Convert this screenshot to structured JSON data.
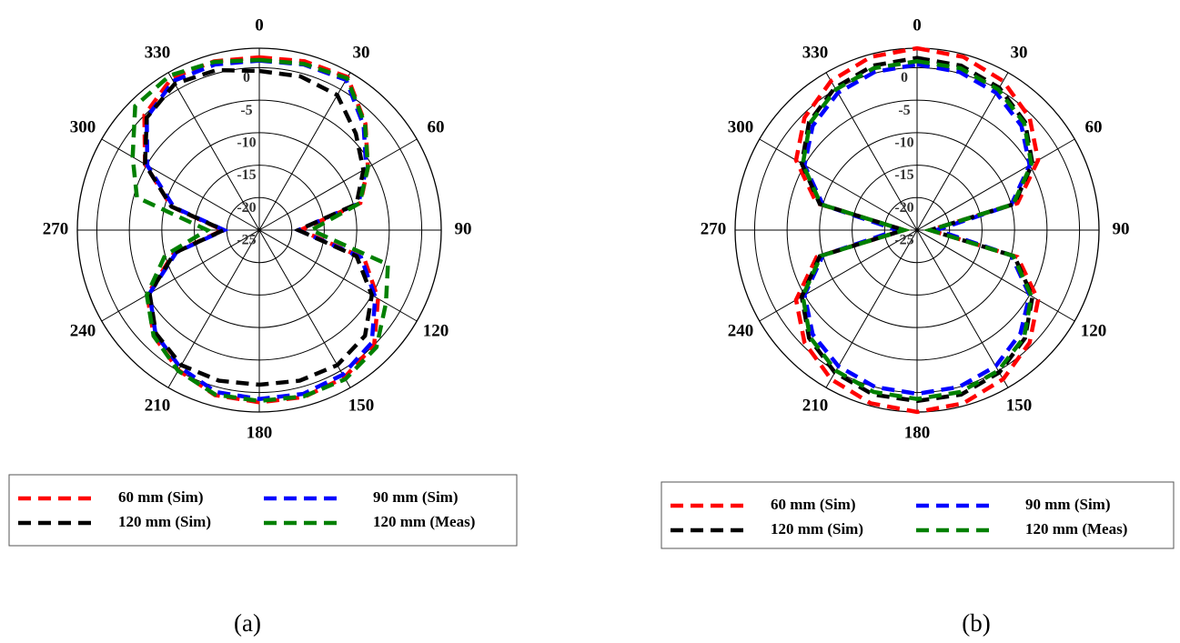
{
  "chart_data": [
    {
      "type": "polar",
      "caption": "(a)",
      "theta_zero": "top",
      "theta_direction": "clockwise",
      "theta": [
        0,
        15,
        30,
        45,
        60,
        75,
        90,
        105,
        120,
        135,
        150,
        165,
        180,
        195,
        210,
        225,
        240,
        255,
        270,
        285,
        300,
        315,
        330,
        345
      ],
      "thetaticks": [
        0,
        30,
        60,
        90,
        120,
        150,
        180,
        210,
        240,
        270,
        300,
        330
      ],
      "rlim": [
        -25,
        3
      ],
      "rticks": [
        -25,
        -20,
        -15,
        -10,
        -5,
        0
      ],
      "series": [
        {
          "name": "60 mm (Sim)",
          "color": "#ff0000",
          "values": [
            1.6,
            1.9,
            2.2,
            -1.9,
            -5.7,
            -8.9,
            -18.7,
            -8.3,
            -3.9,
            0,
            1.2,
            1.6,
            1.5,
            1.3,
            -0.1,
            -2,
            -5.1,
            -11.4,
            -19.4,
            -11,
            -4.7,
            0,
            2,
            1.9
          ]
        },
        {
          "name": "90 mm (Sim)",
          "color": "#0000ff",
          "values": [
            1.1,
            1.4,
            1.7,
            -2.3,
            -6,
            -9.2,
            -19,
            -8.8,
            -4.4,
            -0.5,
            0.7,
            1.1,
            1,
            0.8,
            -0.6,
            -2.4,
            -5.5,
            -11.8,
            -19.6,
            -11.4,
            -5.1,
            -0.5,
            1.5,
            1.4
          ]
        },
        {
          "name": "120 mm (Sim)",
          "color": "#000000",
          "values": [
            -0.5,
            -0.5,
            -1,
            -4,
            -6.5,
            -9.5,
            -19,
            -9.5,
            -5,
            -2,
            -1,
            -1,
            -1.2,
            -1,
            -1,
            -2.5,
            -5.5,
            -11.5,
            -19.5,
            -11,
            -4.7,
            -0.5,
            1,
            0.5
          ]
        },
        {
          "name": "120 mm (Meas)",
          "color": "#008000",
          "values": [
            1.2,
            1.5,
            2,
            -2,
            -5.7,
            -9,
            -17,
            -4.5,
            -2.5,
            0.5,
            1.5,
            1.5,
            1.3,
            1.2,
            0,
            -2,
            -5,
            -10,
            -17,
            -5.5,
            -2.5,
            2,
            2.5,
            1.8
          ]
        }
      ]
    },
    {
      "type": "polar",
      "caption": "(b)",
      "theta_zero": "top",
      "theta_direction": "clockwise",
      "theta": [
        0,
        15,
        30,
        45,
        60,
        75,
        90,
        105,
        120,
        135,
        150,
        165,
        180,
        195,
        210,
        225,
        240,
        255,
        270,
        285,
        300,
        315,
        330,
        345
      ],
      "thetaticks": [
        0,
        30,
        60,
        90,
        120,
        150,
        180,
        210,
        240,
        270,
        300,
        330
      ],
      "rlim": [
        -25,
        3
      ],
      "rticks": [
        -25,
        -20,
        -15,
        -10,
        -5,
        0
      ],
      "series": [
        {
          "name": "60 mm (Sim)",
          "color": "#ff0000",
          "values": [
            3,
            2.6,
            1.5,
            -0.5,
            -3.5,
            -9,
            -23,
            -9,
            -3.5,
            -0.5,
            1.5,
            2.6,
            3,
            2.6,
            1.5,
            -0.5,
            -3.5,
            -9,
            -23,
            -9,
            -3.5,
            -0.5,
            1.5,
            2.6
          ]
        },
        {
          "name": "90 mm (Sim)",
          "color": "#0000ff",
          "values": [
            0.5,
            0.2,
            -0.6,
            -2.3,
            -5,
            -10,
            -22,
            -10,
            -5,
            -2.5,
            -0.8,
            0,
            0.2,
            0,
            -0.8,
            -2.3,
            -5,
            -10,
            -22,
            -10,
            -5,
            -2.3,
            -0.6,
            0.2
          ]
        },
        {
          "name": "120 mm (Sim)",
          "color": "#000000",
          "values": [
            1.5,
            1.2,
            0.3,
            -1.5,
            -4.5,
            -9.5,
            -23,
            -9.5,
            -4.5,
            -1.5,
            0.3,
            1.2,
            1.3,
            1.2,
            0.3,
            -1.5,
            -4.5,
            -9.5,
            -23,
            -9.5,
            -4.5,
            -1.5,
            0.3,
            1.2
          ]
        },
        {
          "name": "120 mm (Meas)",
          "color": "#008000",
          "values": [
            1,
            0.8,
            0,
            -1.7,
            -4.7,
            -9.7,
            -23,
            -9.7,
            -4.7,
            -1.7,
            0,
            0.8,
            1,
            0.8,
            0,
            -1.7,
            -4.7,
            -9.7,
            -23,
            -9.7,
            -4.7,
            -1.7,
            0,
            0.8
          ]
        }
      ]
    }
  ]
}
